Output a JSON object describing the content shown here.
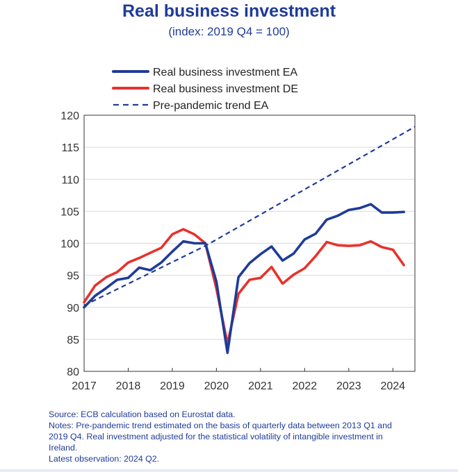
{
  "chart_data": {
    "type": "line",
    "title": "Real business investment",
    "subtitle": "(index: 2019 Q4 = 100)",
    "xlabel": "",
    "ylabel": "",
    "x_ticks": [
      "2017",
      "2018",
      "2019",
      "2020",
      "2021",
      "2022",
      "2023",
      "2024"
    ],
    "y_ticks": [
      80,
      85,
      90,
      95,
      100,
      105,
      110,
      115,
      120
    ],
    "xlim": [
      2017.0,
      2024.5
    ],
    "ylim": [
      80,
      120
    ],
    "grid": "horizontal",
    "legend_position": "top-left",
    "series": [
      {
        "name": "Real business investment EA",
        "color": "#1f3b99",
        "style": "solid",
        "x": [
          2017.0,
          2017.25,
          2017.5,
          2017.75,
          2018.0,
          2018.25,
          2018.5,
          2018.75,
          2019.0,
          2019.25,
          2019.5,
          2019.75,
          2020.0,
          2020.25,
          2020.5,
          2020.75,
          2021.0,
          2021.25,
          2021.5,
          2021.75,
          2022.0,
          2022.25,
          2022.5,
          2022.75,
          2023.0,
          2023.25,
          2023.5,
          2023.75,
          2024.0,
          2024.25
        ],
        "values": [
          90.0,
          91.8,
          93.0,
          94.3,
          94.6,
          96.2,
          95.8,
          97.0,
          98.7,
          100.3,
          100.0,
          100.0,
          94.0,
          82.9,
          94.7,
          96.9,
          98.3,
          99.5,
          97.3,
          98.4,
          100.6,
          101.5,
          103.7,
          104.3,
          105.2,
          105.5,
          106.1,
          104.8,
          104.8,
          104.9
        ]
      },
      {
        "name": "Real business investment DE",
        "color": "#e8322b",
        "style": "solid",
        "x": [
          2017.0,
          2017.25,
          2017.5,
          2017.75,
          2018.0,
          2018.25,
          2018.5,
          2018.75,
          2019.0,
          2019.25,
          2019.5,
          2019.75,
          2020.0,
          2020.25,
          2020.5,
          2020.75,
          2021.0,
          2021.25,
          2021.5,
          2021.75,
          2022.0,
          2022.25,
          2022.5,
          2022.75,
          2023.0,
          2023.25,
          2023.5,
          2023.75,
          2024.0,
          2024.25
        ],
        "values": [
          90.8,
          93.4,
          94.7,
          95.5,
          97.0,
          97.7,
          98.5,
          99.3,
          101.4,
          102.2,
          101.4,
          100.0,
          92.9,
          84.3,
          92.1,
          94.3,
          94.6,
          96.3,
          93.7,
          95.1,
          96.1,
          98.0,
          100.2,
          99.7,
          99.6,
          99.7,
          100.3,
          99.4,
          99.0,
          96.6
        ]
      },
      {
        "name": "Pre-pandemic trend EA",
        "color": "#1f3b99",
        "style": "dashed",
        "x": [
          2017.0,
          2019.75,
          2024.5
        ],
        "values": [
          90.3,
          99.6,
          118.2
        ]
      }
    ]
  },
  "notes": {
    "source": "Source: ECB calculation based on Eurostat data.",
    "note_line1": "Notes: Pre-pandemic trend estimated on the basis of quarterly data between 2013 Q1 and",
    "note_line2": "2019 Q4. Real investment adjusted for the statistical volatility of intangible investment in",
    "note_line3": "Ireland.",
    "latest": "Latest observation: 2024 Q2."
  }
}
